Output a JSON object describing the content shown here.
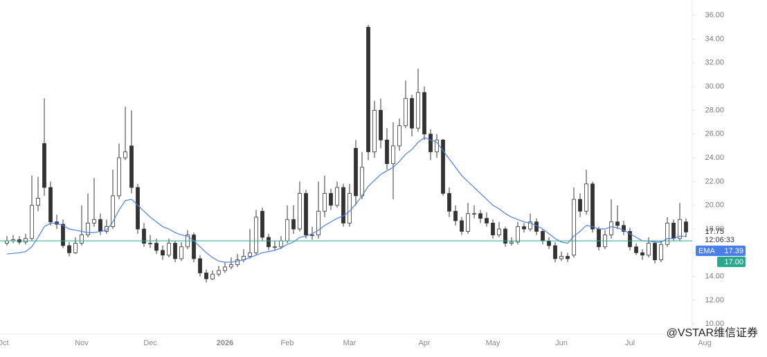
{
  "chart_data": {
    "type": "candlestick",
    "categories": [
      "Oct",
      null,
      null,
      null,
      null,
      null,
      null,
      null,
      null,
      null,
      null,
      null,
      "Nov",
      null,
      null,
      null,
      null,
      null,
      null,
      null,
      null,
      null,
      null,
      "Dec",
      null,
      null,
      null,
      null,
      null,
      null,
      null,
      null,
      null,
      null,
      null,
      "2026",
      null,
      null,
      null,
      null,
      null,
      null,
      null,
      null,
      null,
      "Feb",
      null,
      null,
      null,
      null,
      null,
      null,
      null,
      null,
      null,
      "Mar",
      null,
      null,
      null,
      null,
      null,
      null,
      null,
      null,
      null,
      null,
      null,
      "Apr",
      null,
      null,
      null,
      null,
      null,
      null,
      null,
      null,
      null,
      null,
      "May",
      null,
      null,
      null,
      null,
      null,
      null,
      null,
      null,
      null,
      null,
      "Jun",
      null,
      null,
      null,
      null,
      null,
      null,
      null,
      null,
      null,
      null,
      "Jul",
      null,
      null,
      null,
      null,
      null,
      null,
      null,
      null,
      null,
      null,
      null,
      "Aug",
      null
    ],
    "open": [
      16.8,
      17.0,
      17.1,
      16.9,
      17.2,
      20.0,
      25.2,
      21.5,
      18.6,
      18.4,
      16.6,
      16.0,
      16.8,
      17.5,
      18.5,
      18.8,
      17.8,
      18.2,
      20.8,
      24.0,
      25.0,
      21.5,
      18.0,
      16.8,
      16.8,
      16.2,
      15.8,
      16.8,
      15.5,
      16.5,
      17.5,
      15.5,
      14.3,
      13.8,
      14.2,
      14.5,
      14.8,
      15.0,
      15.4,
      15.7,
      16.0,
      19.5,
      17.3,
      16.5,
      16.5,
      17.0,
      18.8,
      18.0,
      21.0,
      17.5,
      17.5,
      19.5,
      21.0,
      20.0,
      21.5,
      18.5,
      24.8,
      20.8,
      35.0,
      24.5,
      28.0,
      25.5,
      23.5,
      25.0,
      26.7,
      29.0,
      26.5,
      29.5,
      26.0,
      24.5,
      25.5,
      21.0,
      19.5,
      18.7,
      17.8,
      19.3,
      19.3,
      18.9,
      18.5,
      17.5,
      18.0,
      16.8,
      16.9,
      18.2,
      18.0,
      18.6,
      17.8,
      17.0,
      16.6,
      15.5,
      15.7,
      15.8,
      20.5,
      19.5,
      21.8,
      18.0,
      16.5,
      17.5,
      18.6,
      18.3,
      17.8,
      16.5,
      16.0,
      15.8,
      16.8,
      15.4,
      16.7,
      18.5,
      17.2,
      18.6,
      null,
      null,
      null,
      null
    ],
    "high": [
      17.4,
      17.5,
      17.4,
      17.6,
      22.5,
      22.4,
      29.0,
      22.0,
      19.2,
      18.8,
      16.9,
      17.3,
      20.0,
      21.0,
      22.3,
      19.3,
      18.8,
      23.0,
      25.2,
      28.3,
      28.0,
      21.8,
      18.5,
      17.5,
      17.2,
      16.6,
      17.2,
      17.0,
      16.9,
      17.9,
      17.7,
      15.8,
      14.6,
      14.5,
      14.9,
      15.2,
      15.6,
      15.9,
      16.3,
      18.0,
      19.6,
      19.8,
      17.6,
      17.0,
      17.4,
      20.0,
      20.0,
      22.0,
      21.3,
      18.2,
      22.0,
      22.5,
      21.4,
      22.0,
      21.8,
      21.8,
      25.5,
      24.5,
      35.2,
      28.8,
      29.0,
      26.5,
      27.0,
      27.3,
      30.5,
      29.3,
      31.5,
      30.0,
      26.4,
      26.0,
      25.6,
      21.5,
      20.0,
      19.0,
      20.2,
      20.0,
      19.6,
      19.4,
      18.8,
      18.6,
      18.2,
      17.3,
      18.6,
      18.5,
      19.3,
      18.9,
      18.0,
      17.3,
      16.9,
      16.1,
      16.0,
      21.5,
      21.0,
      23.0,
      22.0,
      18.2,
      17.9,
      20.5,
      20.0,
      18.7,
      18.1,
      16.8,
      16.3,
      17.3,
      17.0,
      17.0,
      19.0,
      18.8,
      20.2,
      18.9,
      null,
      null,
      null,
      null
    ],
    "low": [
      16.6,
      16.8,
      16.7,
      16.7,
      17.0,
      19.5,
      20.8,
      18.3,
      18.0,
      16.4,
      15.7,
      15.9,
      16.6,
      17.3,
      18.2,
      17.5,
      17.6,
      18.0,
      20.5,
      23.8,
      21.0,
      17.6,
      16.5,
      16.4,
      15.9,
      15.4,
      15.6,
      15.2,
      15.3,
      16.3,
      15.2,
      14.0,
      13.5,
      13.7,
      14.0,
      14.3,
      14.6,
      14.8,
      15.2,
      15.5,
      15.8,
      17.0,
      16.2,
      16.2,
      16.3,
      16.8,
      17.6,
      17.8,
      17.2,
      17.1,
      17.2,
      19.0,
      19.6,
      19.8,
      18.2,
      18.2,
      20.0,
      20.5,
      23.8,
      24.0,
      24.8,
      23.0,
      20.5,
      24.6,
      26.5,
      25.8,
      26.2,
      25.5,
      23.8,
      24.0,
      20.8,
      19.0,
      18.3,
      17.5,
      17.6,
      18.9,
      18.5,
      18.2,
      17.2,
      17.3,
      16.5,
      16.6,
      16.7,
      17.7,
      17.8,
      17.5,
      16.7,
      16.3,
      15.2,
      15.3,
      15.2,
      15.6,
      19.0,
      19.2,
      17.7,
      16.2,
      16.3,
      17.2,
      18.0,
      17.5,
      16.2,
      15.8,
      15.4,
      15.6,
      15.1,
      15.2,
      16.5,
      17.0,
      17.0,
      17.3,
      null,
      null,
      null,
      null
    ],
    "close": [
      17.0,
      17.1,
      16.9,
      17.2,
      20.0,
      20.6,
      21.5,
      18.6,
      18.4,
      16.6,
      16.0,
      16.8,
      17.5,
      18.5,
      18.8,
      17.8,
      18.2,
      20.8,
      24.0,
      24.5,
      21.5,
      18.0,
      16.8,
      16.8,
      16.2,
      15.8,
      16.8,
      15.5,
      16.5,
      17.5,
      15.5,
      14.3,
      13.8,
      14.2,
      14.5,
      14.8,
      15.0,
      15.4,
      15.7,
      16.0,
      19.0,
      17.3,
      16.5,
      16.5,
      17.0,
      18.8,
      18.0,
      21.0,
      17.5,
      17.5,
      19.5,
      21.0,
      20.0,
      21.5,
      18.5,
      21.0,
      20.8,
      23.2,
      24.5,
      28.0,
      25.5,
      23.5,
      25.0,
      26.7,
      29.0,
      26.5,
      29.5,
      26.0,
      24.5,
      25.5,
      21.0,
      19.5,
      18.7,
      17.8,
      19.3,
      19.3,
      18.9,
      18.5,
      17.5,
      18.0,
      16.8,
      16.9,
      18.2,
      18.0,
      18.6,
      17.8,
      17.0,
      16.6,
      15.5,
      15.7,
      15.5,
      20.5,
      19.5,
      21.8,
      18.0,
      16.5,
      17.5,
      18.6,
      18.3,
      17.8,
      16.5,
      16.0,
      15.8,
      16.8,
      15.4,
      16.7,
      18.5,
      17.2,
      18.8,
      17.75,
      null,
      null,
      null,
      null
    ],
    "ema": {
      "name": "EMA",
      "color": "#4a7ee8",
      "values": [
        15.9,
        15.95,
        16.0,
        16.1,
        16.5,
        17.3,
        18.2,
        18.5,
        18.5,
        18.3,
        18.0,
        17.9,
        17.8,
        17.7,
        17.7,
        17.8,
        17.9,
        18.6,
        19.6,
        20.4,
        20.5,
        20.0,
        19.5,
        19.0,
        18.6,
        18.2,
        18.0,
        17.7,
        17.5,
        17.4,
        17.0,
        16.5,
        16.0,
        15.6,
        15.3,
        15.2,
        15.2,
        15.3,
        15.4,
        15.6,
        15.8,
        16.0,
        16.1,
        16.2,
        16.4,
        16.7,
        16.9,
        17.3,
        17.4,
        17.6,
        17.9,
        18.3,
        18.6,
        18.9,
        19.1,
        19.5,
        20.1,
        20.8,
        21.6,
        22.1,
        22.6,
        22.9,
        23.2,
        23.7,
        24.3,
        24.7,
        25.3,
        25.7,
        25.5,
        25.3,
        24.6,
        23.9,
        23.2,
        22.5,
        22.0,
        21.5,
        21.0,
        20.5,
        20.0,
        19.7,
        19.3,
        19.0,
        18.8,
        18.6,
        18.5,
        18.3,
        18.0,
        17.6,
        17.2,
        16.9,
        16.8,
        17.4,
        17.8,
        18.3,
        18.2,
        18.0,
        18.0,
        18.2,
        18.1,
        17.9,
        17.6,
        17.3,
        17.0,
        17.0,
        16.9,
        16.9,
        17.2,
        17.2,
        17.4,
        17.39,
        null,
        null,
        null,
        null
      ]
    },
    "up_color": "#ffffff",
    "down_color": "#333333",
    "wick_color": "#333333",
    "ylim": [
      9.2,
      37.0
    ],
    "yticks": [
      {
        "value": 10,
        "label": "10.00"
      },
      {
        "value": 12,
        "label": "12.00"
      },
      {
        "value": 14,
        "label": "14.00"
      },
      {
        "value": 16,
        "label": "16.00"
      },
      {
        "value": 18,
        "label": "18.00"
      },
      {
        "value": 20,
        "label": "20.00"
      },
      {
        "value": 22,
        "label": "22.00"
      },
      {
        "value": 24,
        "label": "24.00"
      },
      {
        "value": 26,
        "label": "26.00"
      },
      {
        "value": 28,
        "label": "28.00"
      },
      {
        "value": 30,
        "label": "30.00"
      },
      {
        "value": 32,
        "label": "32.00"
      },
      {
        "value": 34,
        "label": "34.00"
      },
      {
        "value": 36,
        "label": "36.00"
      }
    ],
    "grid": false,
    "last_price": 17.75,
    "countdown": "12:06:33",
    "ema_last": 17.39,
    "price_line": {
      "value": 17,
      "label": "17.00",
      "color": "#2aa88f"
    },
    "watermark": "@VSTAR维信证券"
  }
}
